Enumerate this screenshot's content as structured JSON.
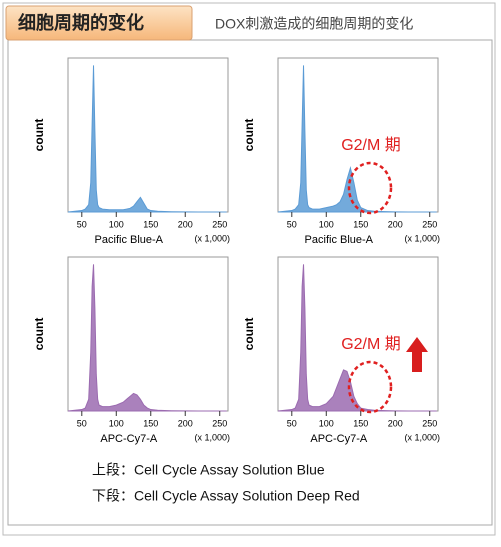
{
  "header": {
    "title": "细胞周期的变化",
    "subtitle": "DOX刺激造成的细胞周期的变化"
  },
  "chart_data": [
    {
      "type": "area",
      "y_label": "count",
      "x_label": "Pacific Blue-A",
      "x_unit_label": "(x 1,000)",
      "color": "#5b9bd5",
      "x": [
        30,
        40,
        50,
        55,
        60,
        63,
        65,
        67,
        69,
        71,
        73,
        75,
        80,
        90,
        100,
        110,
        115,
        120,
        125,
        130,
        135,
        140,
        145,
        150,
        160,
        170,
        180,
        200,
        220,
        240,
        260
      ],
      "values": [
        0,
        0.5,
        1,
        2,
        5,
        20,
        60,
        100,
        55,
        15,
        5,
        3,
        2,
        1.5,
        1.5,
        1.5,
        2,
        2.5,
        4,
        7,
        10,
        6,
        2,
        1,
        0.5,
        0.3,
        0.2,
        0.1,
        0,
        0,
        0
      ],
      "xlim": [
        30,
        262
      ],
      "ylim": [
        0,
        105
      ],
      "xticks": [
        50,
        100,
        150,
        200,
        250
      ]
    },
    {
      "type": "area",
      "y_label": "count",
      "x_label": "Pacific Blue-A",
      "x_unit_label": "(x 1,000)",
      "color": "#5b9bd5",
      "annotation": "G2/M 期",
      "x": [
        30,
        40,
        50,
        55,
        60,
        63,
        65,
        67,
        69,
        71,
        73,
        75,
        80,
        90,
        100,
        110,
        115,
        120,
        125,
        130,
        135,
        140,
        145,
        150,
        160,
        170,
        180,
        200,
        220,
        240,
        260
      ],
      "values": [
        0,
        0.5,
        1,
        2,
        5,
        20,
        60,
        100,
        55,
        15,
        5,
        3,
        2,
        2,
        3,
        4,
        5,
        7,
        12,
        22,
        30,
        20,
        8,
        3,
        1,
        0.5,
        0.3,
        0.1,
        0,
        0,
        0
      ],
      "xlim": [
        30,
        262
      ],
      "ylim": [
        0,
        105
      ],
      "xticks": [
        50,
        100,
        150,
        200,
        250
      ]
    },
    {
      "type": "area",
      "y_label": "count",
      "x_label": "APC-Cy7-A",
      "x_unit_label": "(x 1,000)",
      "color": "#9b6bb0",
      "x": [
        30,
        40,
        50,
        55,
        60,
        63,
        65,
        67,
        69,
        71,
        73,
        75,
        80,
        90,
        100,
        110,
        115,
        120,
        125,
        130,
        135,
        140,
        145,
        150,
        160,
        170,
        180,
        200,
        220,
        240,
        260
      ],
      "values": [
        0,
        0.5,
        1,
        2,
        8,
        40,
        85,
        100,
        70,
        25,
        8,
        4,
        3,
        3,
        4,
        6,
        8,
        10,
        12,
        11,
        8,
        4,
        2,
        1,
        0.5,
        0.3,
        0.2,
        0.1,
        0,
        0,
        0
      ],
      "xlim": [
        30,
        262
      ],
      "ylim": [
        0,
        105
      ],
      "xticks": [
        50,
        100,
        150,
        200,
        250
      ]
    },
    {
      "type": "area",
      "y_label": "count",
      "x_label": "APC-Cy7-A",
      "x_unit_label": "(x 1,000)",
      "color": "#9b6bb0",
      "annotation": "G2/M 期",
      "x": [
        30,
        40,
        50,
        55,
        60,
        63,
        65,
        67,
        69,
        71,
        73,
        75,
        80,
        90,
        100,
        110,
        115,
        120,
        125,
        130,
        135,
        140,
        145,
        150,
        160,
        170,
        180,
        200,
        220,
        240,
        260
      ],
      "values": [
        0,
        0.5,
        1,
        2,
        8,
        40,
        85,
        100,
        70,
        25,
        8,
        4,
        3,
        3,
        5,
        10,
        16,
        22,
        28,
        27,
        20,
        10,
        5,
        2,
        1,
        0.5,
        0.3,
        0.1,
        0,
        0,
        0
      ],
      "xlim": [
        30,
        262
      ],
      "ylim": [
        0,
        105
      ],
      "xticks": [
        50,
        100,
        150,
        200,
        250
      ]
    }
  ],
  "captions": [
    "上段：Cell Cycle Assay Solution Blue",
    "下段：Cell Cycle Assay Solution Deep Red"
  ]
}
